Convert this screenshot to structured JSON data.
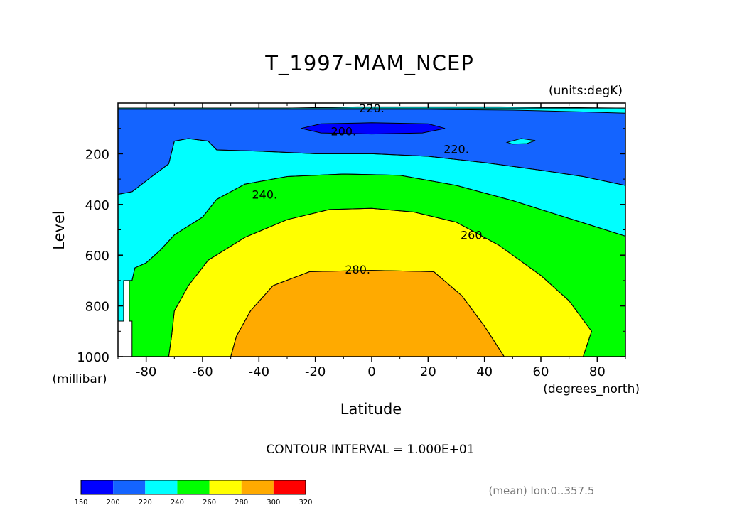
{
  "chart_data": {
    "type": "contour",
    "title": "T_1997-MAM_NCEP",
    "units_label": "(units:degK)",
    "xlabel": "Latitude",
    "x_units_label": "(degrees_north)",
    "ylabel": "Level",
    "y_units_label": "(millibar)",
    "xlim": [
      -90,
      90
    ],
    "ylim": [
      1000,
      0
    ],
    "x_ticks": [
      -80,
      -60,
      -40,
      -20,
      0,
      20,
      40,
      60,
      80
    ],
    "x_tick_labels": [
      "-80",
      "-60",
      "-40",
      "-20",
      "0",
      "20",
      "40",
      "60",
      "80"
    ],
    "y_ticks": [
      1000,
      800,
      600,
      400,
      200
    ],
    "y_tick_labels": [
      "1000",
      "800",
      "600",
      "400",
      "200"
    ],
    "contour_interval_text": "CONTOUR INTERVAL = 1.000E+01",
    "mean_text": "(mean) lon:0..357.5",
    "contour_labels": [
      {
        "text": "220.",
        "x": 0,
        "y": 20
      },
      {
        "text": "200.",
        "x": -10,
        "y": 110
      },
      {
        "text": "220.",
        "x": 30,
        "y": 180
      },
      {
        "text": "240.",
        "x": -38,
        "y": 360
      },
      {
        "text": "260.",
        "x": 36,
        "y": 520
      },
      {
        "text": "280.",
        "x": -5,
        "y": 655
      }
    ],
    "colorbar": {
      "levels": [
        "150",
        "200",
        "220",
        "240",
        "260",
        "280",
        "300",
        "320"
      ],
      "colors": [
        "#0000ff",
        "#1464ff",
        "#00ffff",
        "#00ff00",
        "#ffff00",
        "#ffaa00",
        "#ff0000"
      ]
    },
    "fill_colors": {
      "below_200": "#0000ff",
      "200_220": "#1464ff",
      "220_240": "#00ffff",
      "240_260": "#00ff00",
      "260_280": "#ffff00",
      "280_300": "#ffaa00"
    },
    "regions": [
      {
        "name": "band-200-220",
        "color": "#1464ff",
        "points": [
          [
            -90,
            20
          ],
          [
            90,
            20
          ],
          [
            90,
            325
          ],
          [
            75,
            290
          ],
          [
            60,
            265
          ],
          [
            40,
            235
          ],
          [
            20,
            210
          ],
          [
            0,
            200
          ],
          [
            -20,
            200
          ],
          [
            -40,
            190
          ],
          [
            -55,
            185
          ],
          [
            -58,
            150
          ],
          [
            -65,
            140
          ],
          [
            -70,
            150
          ],
          [
            -72,
            240
          ],
          [
            -78,
            290
          ],
          [
            -85,
            350
          ],
          [
            -90,
            360
          ]
        ]
      },
      {
        "name": "band-220-240-top",
        "color": "#00ffff",
        "points": [
          [
            -90,
            20
          ],
          [
            -30,
            20
          ],
          [
            -5,
            15
          ],
          [
            20,
            15
          ],
          [
            45,
            15
          ],
          [
            90,
            20
          ],
          [
            90,
            40
          ],
          [
            75,
            35
          ],
          [
            50,
            28
          ],
          [
            20,
            25
          ],
          [
            -30,
            25
          ],
          [
            -90,
            25
          ]
        ]
      },
      {
        "name": "cap-below-200",
        "color": "#0000ff",
        "points": [
          [
            -25,
            100
          ],
          [
            -18,
            82
          ],
          [
            0,
            78
          ],
          [
            20,
            82
          ],
          [
            26,
            100
          ],
          [
            18,
            118
          ],
          [
            0,
            122
          ],
          [
            -18,
            118
          ]
        ]
      },
      {
        "name": "blob-220-240",
        "color": "#00ffff",
        "points": [
          [
            48,
            155
          ],
          [
            53,
            140
          ],
          [
            58,
            148
          ],
          [
            55,
            160
          ],
          [
            50,
            162
          ]
        ]
      },
      {
        "name": "band-220-240",
        "color": "#00ffff",
        "points": [
          [
            -90,
            360
          ],
          [
            -85,
            350
          ],
          [
            -78,
            290
          ],
          [
            -72,
            240
          ],
          [
            -70,
            150
          ],
          [
            -65,
            140
          ],
          [
            -58,
            150
          ],
          [
            -55,
            185
          ],
          [
            -40,
            190
          ],
          [
            -20,
            200
          ],
          [
            0,
            200
          ],
          [
            20,
            210
          ],
          [
            40,
            235
          ],
          [
            60,
            265
          ],
          [
            75,
            290
          ],
          [
            90,
            325
          ],
          [
            90,
            525
          ],
          [
            70,
            455
          ],
          [
            50,
            385
          ],
          [
            30,
            325
          ],
          [
            10,
            285
          ],
          [
            -10,
            280
          ],
          [
            -30,
            290
          ],
          [
            -45,
            320
          ],
          [
            -55,
            380
          ],
          [
            -60,
            450
          ],
          [
            -70,
            520
          ],
          [
            -75,
            580
          ],
          [
            -80,
            630
          ],
          [
            -84,
            650
          ],
          [
            -85,
            700
          ],
          [
            -88,
            700
          ],
          [
            -88,
            860
          ],
          [
            -90,
            860
          ]
        ]
      },
      {
        "name": "band-240-260",
        "color": "#00ff00",
        "points": [
          [
            -84,
            650
          ],
          [
            -80,
            630
          ],
          [
            -75,
            580
          ],
          [
            -70,
            520
          ],
          [
            -60,
            450
          ],
          [
            -55,
            380
          ],
          [
            -45,
            320
          ],
          [
            -30,
            290
          ],
          [
            -10,
            280
          ],
          [
            10,
            285
          ],
          [
            30,
            325
          ],
          [
            50,
            385
          ],
          [
            70,
            455
          ],
          [
            90,
            525
          ],
          [
            90,
            1000
          ],
          [
            75,
            1000
          ],
          [
            78,
            900
          ],
          [
            70,
            780
          ],
          [
            60,
            680
          ],
          [
            45,
            560
          ],
          [
            30,
            470
          ],
          [
            15,
            430
          ],
          [
            0,
            415
          ],
          [
            -15,
            420
          ],
          [
            -30,
            460
          ],
          [
            -45,
            530
          ],
          [
            -58,
            620
          ],
          [
            -65,
            720
          ],
          [
            -70,
            820
          ],
          [
            -71,
            920
          ],
          [
            -72,
            1000
          ],
          [
            -85,
            1000
          ],
          [
            -85,
            860
          ],
          [
            -86,
            860
          ],
          [
            -86,
            700
          ],
          [
            -85,
            700
          ]
        ]
      },
      {
        "name": "band-260-280",
        "color": "#ffff00",
        "points": [
          [
            -72,
            1000
          ],
          [
            -71,
            920
          ],
          [
            -70,
            820
          ],
          [
            -65,
            720
          ],
          [
            -58,
            620
          ],
          [
            -45,
            530
          ],
          [
            -30,
            460
          ],
          [
            -15,
            420
          ],
          [
            0,
            415
          ],
          [
            15,
            430
          ],
          [
            30,
            470
          ],
          [
            45,
            560
          ],
          [
            60,
            680
          ],
          [
            70,
            780
          ],
          [
            78,
            900
          ],
          [
            75,
            1000
          ],
          [
            47,
            1000
          ],
          [
            40,
            880
          ],
          [
            32,
            760
          ],
          [
            22,
            665
          ],
          [
            0,
            660
          ],
          [
            -22,
            665
          ],
          [
            -35,
            720
          ],
          [
            -43,
            820
          ],
          [
            -48,
            920
          ],
          [
            -50,
            1000
          ]
        ]
      },
      {
        "name": "band-280-300",
        "color": "#ffaa00",
        "points": [
          [
            -50,
            1000
          ],
          [
            -48,
            920
          ],
          [
            -43,
            820
          ],
          [
            -35,
            720
          ],
          [
            -22,
            665
          ],
          [
            0,
            660
          ],
          [
            22,
            665
          ],
          [
            32,
            760
          ],
          [
            40,
            880
          ],
          [
            47,
            1000
          ]
        ]
      }
    ]
  }
}
